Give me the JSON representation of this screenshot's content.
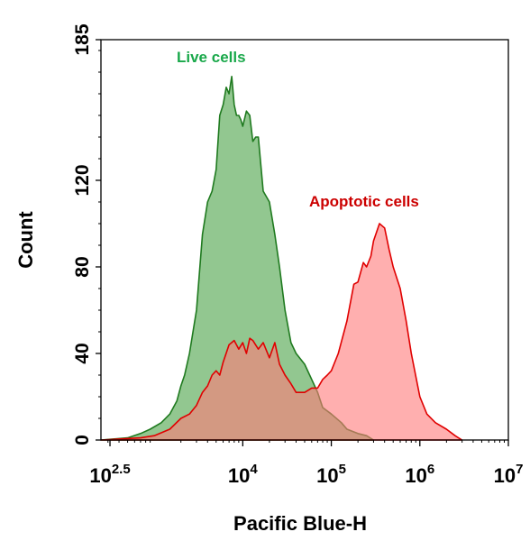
{
  "chart_data": {
    "type": "area",
    "xlabel": "Pacific Blue-H",
    "ylabel": "Count",
    "x_scale": "log",
    "xlim": [
      250,
      10000000
    ],
    "ylim": [
      0,
      185
    ],
    "x_ticks": [
      {
        "value": 316.2,
        "base": "10",
        "exp": "2.5"
      },
      {
        "value": 10000,
        "base": "10",
        "exp": "4"
      },
      {
        "value": 100000,
        "base": "10",
        "exp": "5"
      },
      {
        "value": 1000000,
        "base": "10",
        "exp": "6"
      },
      {
        "value": 10000000,
        "base": "10",
        "exp": "7"
      }
    ],
    "y_ticks": [
      {
        "value": 0,
        "label": "0"
      },
      {
        "value": 40,
        "label": "40"
      },
      {
        "value": 80,
        "label": "80"
      },
      {
        "value": 120,
        "label": "120"
      },
      {
        "value": 185,
        "label": "185"
      }
    ],
    "grid": false,
    "series": [
      {
        "name": "Live cells",
        "line_color": "#1f7a1f",
        "fill_color": "#8cc48a",
        "x": [
          250,
          500,
          700,
          900,
          1200,
          1500,
          1800,
          2000,
          2200,
          2500,
          3000,
          3500,
          4000,
          4500,
          5000,
          5500,
          6000,
          6500,
          7000,
          7500,
          8000,
          8500,
          9000,
          9500,
          10000,
          11000,
          12000,
          13000,
          14000,
          15000,
          17000,
          20000,
          23000,
          26000,
          30000,
          35000,
          40000,
          50000,
          60000,
          70000,
          80000,
          100000,
          130000,
          150000,
          200000,
          250000,
          300000
        ],
        "y": [
          0,
          1,
          3,
          5,
          8,
          12,
          18,
          25,
          30,
          40,
          60,
          95,
          110,
          115,
          125,
          150,
          155,
          163,
          160,
          168,
          155,
          150,
          150,
          148,
          145,
          152,
          150,
          138,
          140,
          140,
          115,
          110,
          95,
          80,
          60,
          45,
          40,
          35,
          28,
          22,
          15,
          12,
          8,
          5,
          3,
          2,
          0
        ]
      },
      {
        "name": "Apoptotic cells",
        "line_color": "#e00000",
        "fill_color": "#ff7a7a",
        "x": [
          250,
          700,
          1000,
          1500,
          2000,
          2500,
          3000,
          3500,
          4000,
          4500,
          5000,
          5500,
          6000,
          7000,
          8000,
          9000,
          10000,
          11000,
          12000,
          13000,
          15000,
          17000,
          20000,
          23000,
          26000,
          30000,
          35000,
          40000,
          50000,
          60000,
          70000,
          80000,
          90000,
          100000,
          120000,
          150000,
          180000,
          200000,
          230000,
          250000,
          280000,
          300000,
          350000,
          400000,
          450000,
          500000,
          600000,
          700000,
          800000,
          1000000,
          1200000,
          1500000,
          2000000,
          2500000,
          3000000
        ],
        "y": [
          0,
          1,
          2,
          5,
          10,
          12,
          16,
          22,
          25,
          30,
          32,
          30,
          36,
          44,
          46,
          42,
          45,
          40,
          47,
          46,
          42,
          45,
          38,
          45,
          35,
          30,
          26,
          22,
          22,
          24,
          24,
          28,
          30,
          32,
          40,
          55,
          72,
          73,
          82,
          80,
          85,
          92,
          100,
          98,
          88,
          80,
          70,
          55,
          40,
          20,
          12,
          8,
          5,
          2,
          0
        ]
      }
    ],
    "annotations": [
      {
        "text": "Live cells",
        "color": "#19a84a"
      },
      {
        "text": "Apoptotic cells",
        "color": "#cc0000"
      }
    ]
  }
}
